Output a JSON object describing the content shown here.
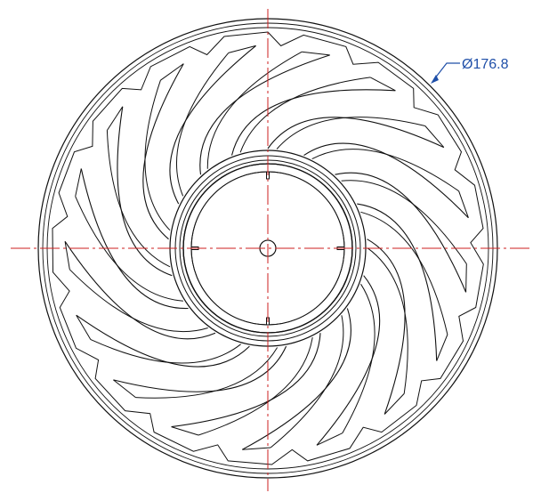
{
  "drawing": {
    "dimension_label": "Ø176.8",
    "blade_count": 17,
    "colors": {
      "line": "#111111",
      "centerline": "#cc1f1f",
      "dimension": "#1f4fa8",
      "background": "#ffffff"
    }
  }
}
